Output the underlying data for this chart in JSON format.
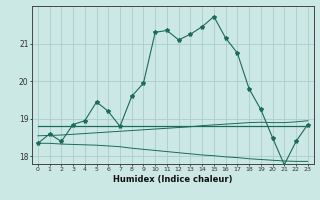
{
  "title": "",
  "xlabel": "Humidex (Indice chaleur)",
  "ylabel": "",
  "background_color": "#cce8e4",
  "grid_color": "#aaccca",
  "line_color": "#1a6b5a",
  "xlim": [
    -0.5,
    23.5
  ],
  "ylim": [
    17.8,
    22.0
  ],
  "yticks": [
    18,
    19,
    20,
    21
  ],
  "xticks": [
    0,
    1,
    2,
    3,
    4,
    5,
    6,
    7,
    8,
    9,
    10,
    11,
    12,
    13,
    14,
    15,
    16,
    17,
    18,
    19,
    20,
    21,
    22,
    23
  ],
  "main_line_x": [
    0,
    1,
    2,
    3,
    4,
    5,
    6,
    7,
    8,
    9,
    10,
    11,
    12,
    13,
    14,
    15,
    16,
    17,
    18,
    19,
    20,
    21,
    22,
    23
  ],
  "main_line_y": [
    18.35,
    18.6,
    18.4,
    18.85,
    18.95,
    19.45,
    19.2,
    18.8,
    19.6,
    19.95,
    21.3,
    21.35,
    21.1,
    21.25,
    21.45,
    21.72,
    21.15,
    20.75,
    19.8,
    19.25,
    18.5,
    17.78,
    18.4,
    18.85
  ],
  "upper_line_y": [
    18.8,
    18.8,
    18.8,
    18.8,
    18.8,
    18.8,
    18.8,
    18.8,
    18.8,
    18.8,
    18.8,
    18.8,
    18.8,
    18.8,
    18.8,
    18.8,
    18.8,
    18.8,
    18.8,
    18.8,
    18.8,
    18.8,
    18.8,
    18.8
  ],
  "mid_line_y": [
    18.55,
    18.56,
    18.57,
    18.59,
    18.61,
    18.63,
    18.65,
    18.67,
    18.69,
    18.71,
    18.73,
    18.75,
    18.77,
    18.79,
    18.82,
    18.84,
    18.86,
    18.88,
    18.9,
    18.91,
    18.9,
    18.9,
    18.92,
    18.95
  ],
  "lower_line_y": [
    18.35,
    18.35,
    18.33,
    18.32,
    18.31,
    18.3,
    18.28,
    18.26,
    18.22,
    18.19,
    18.16,
    18.13,
    18.1,
    18.07,
    18.04,
    18.02,
    17.99,
    17.97,
    17.94,
    17.92,
    17.9,
    17.88,
    17.87,
    17.87
  ]
}
